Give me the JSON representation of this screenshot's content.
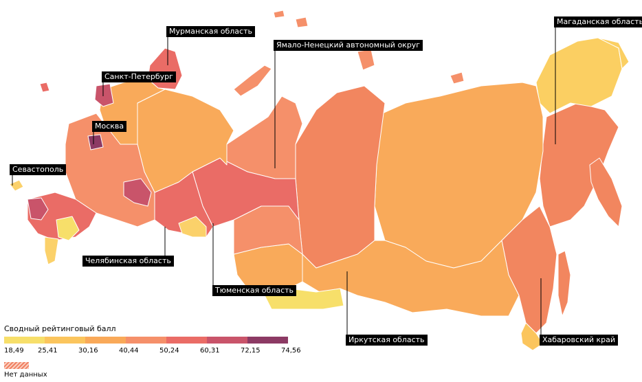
{
  "regions": [
    {
      "name": "Мурманская область"
    },
    {
      "name": "Санкт-Петербург"
    },
    {
      "name": "Москва"
    },
    {
      "name": "Севастополь"
    },
    {
      "name": "Челябинская область"
    },
    {
      "name": "Тюменская область"
    },
    {
      "name": "Ямало-Ненецкий автономный округ"
    },
    {
      "name": "Магаданская область"
    },
    {
      "name": "Иркутская область"
    },
    {
      "name": "Хабаровский край"
    }
  ],
  "legend": {
    "title": "Сводный рейтинговый балл",
    "ticks": [
      "18,49",
      "25,41",
      "30,16",
      "40,44",
      "50,24",
      "60,31",
      "72,15",
      "74,56"
    ],
    "colors": [
      "#f7df6a",
      "#fbc55d",
      "#f9a959",
      "#f5906a",
      "#ea6c66",
      "#c9546a",
      "#8c3a64"
    ],
    "no_data_label": "Нет данных"
  },
  "colors": {
    "background": "#ffffff",
    "border": "#ffffff",
    "label_bg": "#000000",
    "label_text": "#ffffff"
  }
}
